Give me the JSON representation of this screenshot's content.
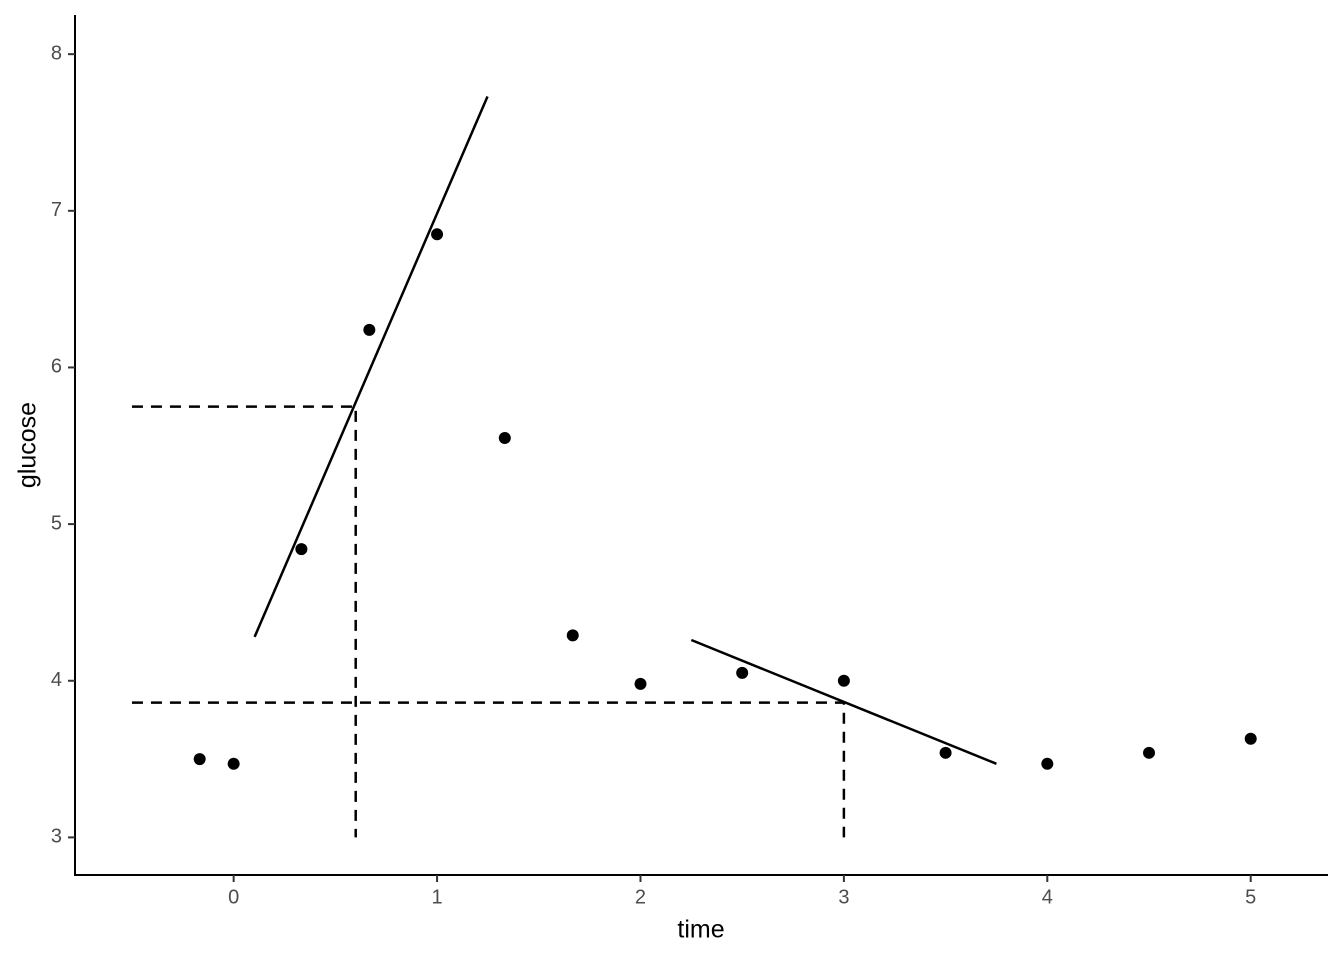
{
  "chart_data": {
    "type": "scatter",
    "x_label": "time",
    "y_label": "glucose",
    "x": [
      -0.167,
      0,
      0.333,
      0.667,
      1,
      1.333,
      1.667,
      2,
      2.5,
      3,
      3.5,
      4,
      4.5,
      5
    ],
    "values": [
      3.5,
      3.47,
      4.84,
      6.24,
      6.85,
      5.55,
      4.29,
      3.98,
      4.05,
      4.0,
      3.54,
      3.47,
      3.54,
      3.63
    ],
    "color": "#000000",
    "fit_lines": [
      {
        "x": [
          0.103,
          1.248
        ],
        "values": [
          4.28,
          7.73
        ]
      },
      {
        "x": [
          2.25,
          3.75
        ],
        "values": [
          4.26,
          3.47
        ]
      }
    ],
    "guides": [
      {
        "x": [
          -0.5,
          0.6,
          0.6
        ],
        "values": [
          5.75,
          5.75,
          3
        ]
      },
      {
        "x": [
          -0.5,
          3,
          3
        ],
        "values": [
          3.86,
          3.86,
          3
        ]
      }
    ],
    "xlim": [
      -0.78,
      5.38
    ],
    "ylim": [
      2.76,
      8.25
    ],
    "xticks": [
      0,
      1,
      2,
      3,
      4,
      5
    ],
    "yticks": [
      3,
      4,
      5,
      6,
      7,
      8
    ],
    "grid": false
  }
}
